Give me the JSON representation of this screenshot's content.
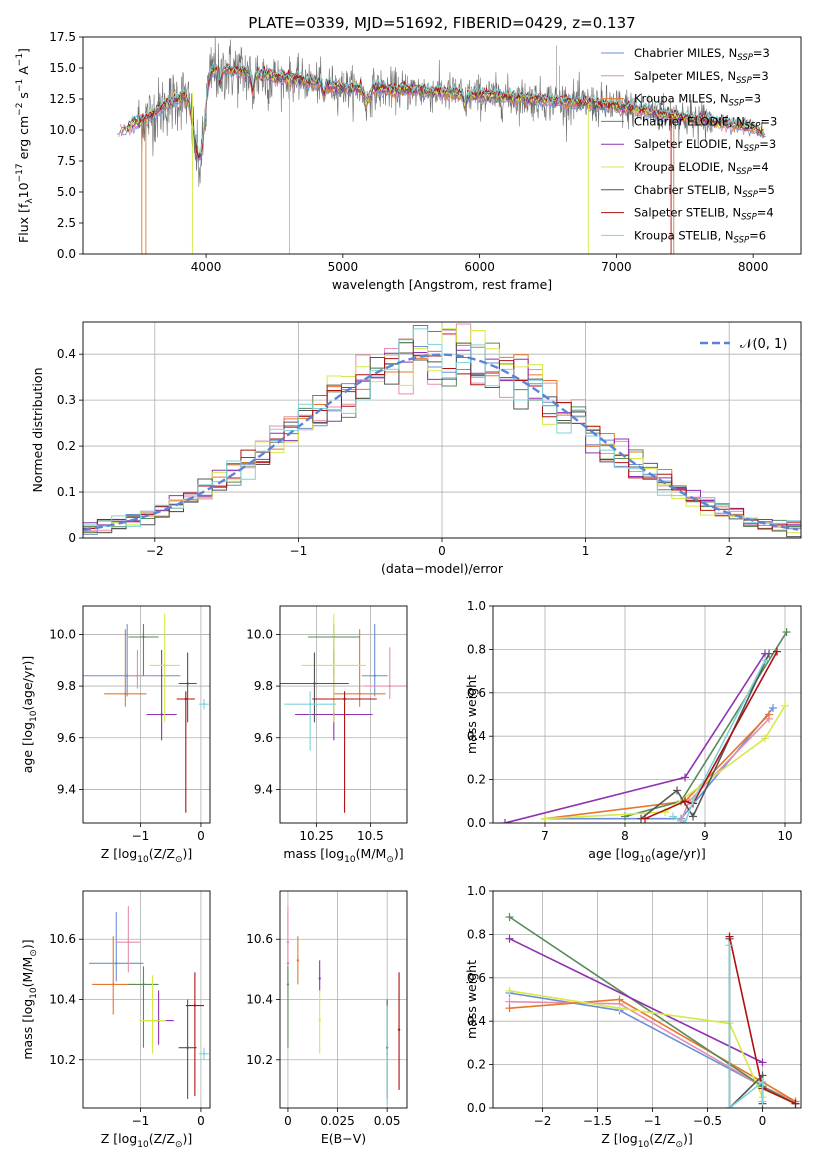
{
  "colors": {
    "chabrier_miles": "#6b8fd6",
    "salpeter_miles": "#e58fb0",
    "kroupa_miles": "#e8772e",
    "chabrier_elodie": "#5a8a5a",
    "salpeter_elodie": "#9030b0",
    "kroupa_elodie": "#d5ea4a",
    "chabrier_stelib": "#555555",
    "salpeter_stelib": "#b01010",
    "kroupa_stelib": "#7fd3d8",
    "gauss": "#5b84d8",
    "grid": "#b0b0b0"
  },
  "chart_data": [
    {
      "id": "spectrum",
      "type": "line",
      "title": "PLATE=0339, MJD=51692, FIBERID=0429, z=0.137",
      "xlabel": "wavelength [Angstrom, rest frame]",
      "ylabel": "Flux [f$_\\lambda$10$^{-17}$ erg cm$^{-2}$ s$^{-1}$ A$^{-1}$]",
      "xlim": [
        3100,
        8350
      ],
      "ylim": [
        0,
        17.5
      ],
      "xticks": [
        4000,
        5000,
        6000,
        7000,
        8000
      ],
      "yticks": [
        0.0,
        2.5,
        5.0,
        7.5,
        10.0,
        12.5,
        15.0,
        17.5
      ],
      "grid": false,
      "legend_position": "top-right",
      "legend": [
        {
          "label": "Chabrier MILES, N",
          "sub": "SSP",
          "n": "=3",
          "color_key": "chabrier_miles"
        },
        {
          "label": "Salpeter MILES, N",
          "sub": "SSP",
          "n": "=3",
          "color_key": "salpeter_miles"
        },
        {
          "label": "Kroupa MILES, N",
          "sub": "SSP",
          "n": "=3",
          "color_key": "kroupa_miles"
        },
        {
          "label": "Chabrier ELODIE, N",
          "sub": "SSP",
          "n": "=3",
          "color_key": "chabrier_elodie"
        },
        {
          "label": "Salpeter ELODIE, N",
          "sub": "SSP",
          "n": "=3",
          "color_key": "salpeter_elodie"
        },
        {
          "label": "Kroupa ELODIE, N",
          "sub": "SSP",
          "n": "=4",
          "color_key": "kroupa_elodie"
        },
        {
          "label": "Chabrier STELIB, N",
          "sub": "SSP",
          "n": "=5",
          "color_key": "chabrier_stelib"
        },
        {
          "label": "Salpeter STELIB, N",
          "sub": "SSP",
          "n": "=4",
          "color_key": "salpeter_stelib"
        },
        {
          "label": "Kroupa STELIB, N",
          "sub": "SSP",
          "n": "=6",
          "color_key": "kroupa_stelib"
        }
      ],
      "continuum": {
        "x": [
          3350,
          3500,
          3600,
          3700,
          3800,
          3900,
          3950,
          4000,
          4100,
          4300,
          4500,
          4700,
          5000,
          5500,
          6000,
          6500,
          7000,
          7500,
          8000,
          8100
        ],
        "y": [
          10.0,
          10.6,
          11.2,
          12.0,
          12.6,
          13.0,
          14.0,
          14.8,
          15.0,
          14.6,
          14.3,
          14.0,
          13.4,
          13.2,
          12.8,
          12.4,
          11.9,
          11.0,
          10.2,
          9.7
        ]
      },
      "model_x_range": [
        3350,
        8100
      ],
      "data_x_range": [
        3500,
        7700
      ]
    },
    {
      "id": "residuals",
      "type": "line",
      "xlabel": "(data-model)/error",
      "ylabel": "Normed distribution",
      "xlim": [
        -2.5,
        2.5
      ],
      "ylim": [
        0,
        0.47
      ],
      "xticks": [
        -2,
        -1,
        0,
        1,
        2
      ],
      "yticks": [
        0.0,
        0.1,
        0.2,
        0.3,
        0.4
      ],
      "grid": true,
      "legend_position": "top-right",
      "legend": [
        {
          "label": "𝒩(0, 1)",
          "color_key": "gauss"
        }
      ],
      "bin_width": 0.1
    },
    {
      "id": "age_vs_z",
      "type": "scatter",
      "xlabel": "Z [log$_{10}$(Z/Z$_\\odot$)]",
      "ylabel": "age  [log$_{10}$(age/yr)]",
      "xlim": [
        -1.95,
        0.15
      ],
      "ylim": [
        9.27,
        10.11
      ],
      "xticks": [
        -1,
        0
      ],
      "yticks": [
        9.4,
        9.6,
        9.8,
        10.0
      ],
      "grid": true,
      "points": [
        {
          "color_key": "chabrier_miles",
          "x": -1.22,
          "xerr": 0.88,
          "y": 9.84,
          "yerr": [
            0.08,
            0.2
          ]
        },
        {
          "color_key": "salpeter_miles",
          "x": -1.05,
          "xerr": 0.15,
          "y": 9.84,
          "yerr": [
            0.05,
            0.1
          ]
        },
        {
          "color_key": "kroupa_miles",
          "x": -1.25,
          "xerr": 0.35,
          "y": 9.77,
          "yerr": [
            0.05,
            0.25
          ]
        },
        {
          "color_key": "chabrier_elodie",
          "x": -0.95,
          "xerr": 0.25,
          "y": 9.99,
          "yerr": [
            0.15,
            0.05
          ]
        },
        {
          "color_key": "salpeter_elodie",
          "x": -0.65,
          "xerr": 0.25,
          "y": 9.69,
          "yerr": [
            0.1,
            0.25
          ]
        },
        {
          "color_key": "kroupa_elodie",
          "x": -0.6,
          "xerr": 0.25,
          "y": 9.88,
          "yerr": [
            0.22,
            0.2
          ]
        },
        {
          "color_key": "chabrier_stelib",
          "x": -0.22,
          "xerr": 0.15,
          "y": 9.81,
          "yerr": [
            0.15,
            0.12
          ]
        },
        {
          "color_key": "salpeter_stelib",
          "x": -0.25,
          "xerr": 0.15,
          "y": 9.75,
          "yerr": [
            0.44,
            0.03
          ]
        },
        {
          "color_key": "kroupa_stelib",
          "x": 0.05,
          "xerr": 0.08,
          "y": 9.73,
          "yerr": [
            0.02,
            0.02
          ]
        }
      ]
    },
    {
      "id": "age_vs_mass",
      "type": "scatter",
      "xlabel": "mass [log$_{10}$(M/M$_\\odot$)]",
      "ylabel": "",
      "xlim": [
        10.08,
        10.67
      ],
      "ylim": [
        9.27,
        10.11
      ],
      "xticks": [
        10.25,
        10.5
      ],
      "yticks": [
        9.4,
        9.6,
        9.8,
        10.0
      ],
      "grid": true,
      "points": [
        {
          "color_key": "chabrier_miles",
          "x": 10.52,
          "xerr": 0.06,
          "y": 9.84,
          "yerr": [
            0.08,
            0.2
          ]
        },
        {
          "color_key": "salpeter_miles",
          "x": 10.59,
          "xerr": 0.12,
          "y": 9.8,
          "yerr": [
            0.05,
            0.15
          ]
        },
        {
          "color_key": "kroupa_miles",
          "x": 10.45,
          "xerr": 0.12,
          "y": 9.77,
          "yerr": [
            0.05,
            0.25
          ]
        },
        {
          "color_key": "chabrier_elodie",
          "x": 10.33,
          "xerr": 0.12,
          "y": 9.99,
          "yerr": [
            0.15,
            0.05
          ]
        },
        {
          "color_key": "salpeter_elodie",
          "x": 10.33,
          "xerr": 0.18,
          "y": 9.69,
          "yerr": [
            0.1,
            0.25
          ]
        },
        {
          "color_key": "kroupa_elodie",
          "x": 10.33,
          "xerr": 0.15,
          "y": 9.88,
          "yerr": [
            0.22,
            0.2
          ]
        },
        {
          "color_key": "chabrier_stelib",
          "x": 10.24,
          "xerr": 0.16,
          "y": 9.81,
          "yerr": [
            0.15,
            0.12
          ]
        },
        {
          "color_key": "salpeter_stelib",
          "x": 10.38,
          "xerr": 0.15,
          "y": 9.75,
          "yerr": [
            0.44,
            0.03
          ]
        },
        {
          "color_key": "kroupa_stelib",
          "x": 10.22,
          "xerr": 0.12,
          "y": 9.73,
          "yerr": [
            0.18,
            0.05
          ]
        }
      ]
    },
    {
      "id": "mass_weight_vs_age",
      "type": "line",
      "xlabel": "age  [log$_{10}$(age/yr)]",
      "ylabel": "mass weight",
      "xlim": [
        6.35,
        10.2
      ],
      "ylim": [
        0,
        1.0
      ],
      "xticks": [
        7,
        8,
        9,
        10
      ],
      "yticks": [
        0.0,
        0.2,
        0.4,
        0.6,
        0.8,
        1.0
      ],
      "grid": true,
      "series": [
        {
          "color_key": "chabrier_miles",
          "x": [
            7.0,
            8.7,
            9.85
          ],
          "y": [
            0.02,
            0.02,
            0.53
          ]
        },
        {
          "color_key": "salpeter_miles",
          "x": [
            8.7,
            8.8,
            9.8
          ],
          "y": [
            0.01,
            0.1,
            0.48
          ]
        },
        {
          "color_key": "kroupa_miles",
          "x": [
            7.0,
            8.75,
            9.8
          ],
          "y": [
            0.02,
            0.1,
            0.5
          ]
        },
        {
          "color_key": "chabrier_elodie",
          "x": [
            8.0,
            8.7,
            10.02
          ],
          "y": [
            0.03,
            0.1,
            0.88
          ]
        },
        {
          "color_key": "salpeter_elodie",
          "x": [
            6.5,
            8.75,
            9.75
          ],
          "y": [
            0.0,
            0.21,
            0.78
          ]
        },
        {
          "color_key": "kroupa_elodie",
          "x": [
            7.0,
            8.5,
            9.75,
            10.0
          ],
          "y": [
            0.02,
            0.05,
            0.39,
            0.54
          ]
        },
        {
          "color_key": "chabrier_stelib",
          "x": [
            8.2,
            8.65,
            8.85,
            9.8
          ],
          "y": [
            0.02,
            0.15,
            0.03,
            0.78
          ]
        },
        {
          "color_key": "salpeter_stelib",
          "x": [
            8.25,
            8.75,
            8.85,
            9.9
          ],
          "y": [
            0.02,
            0.1,
            0.09,
            0.79
          ]
        },
        {
          "color_key": "kroupa_stelib",
          "x": [
            8.6,
            8.75,
            8.85,
            9.75
          ],
          "y": [
            0.03,
            0.0,
            0.1,
            0.75
          ]
        }
      ]
    },
    {
      "id": "mass_vs_z",
      "type": "scatter",
      "xlabel": "Z [log$_{10}$(Z/Z$_\\odot$)]",
      "ylabel": "mass [log$_{10}$(M/M$_\\odot$)]",
      "xlim": [
        -1.95,
        0.15
      ],
      "ylim": [
        10.04,
        10.76
      ],
      "xticks": [
        -1,
        0
      ],
      "yticks": [
        10.2,
        10.4,
        10.6
      ],
      "grid": true,
      "points": [
        {
          "color_key": "chabrier_miles",
          "x": -1.4,
          "xerr": 0.45,
          "y": 10.52,
          "yerr": [
            0.06,
            0.17
          ]
        },
        {
          "color_key": "salpeter_miles",
          "x": -1.2,
          "xerr": 0.2,
          "y": 10.59,
          "yerr": [
            0.1,
            0.12
          ]
        },
        {
          "color_key": "kroupa_miles",
          "x": -1.45,
          "xerr": 0.35,
          "y": 10.45,
          "yerr": [
            0.1,
            0.16
          ]
        },
        {
          "color_key": "chabrier_elodie",
          "x": -0.95,
          "xerr": 0.25,
          "y": 10.45,
          "yerr": [
            0.21,
            0.06
          ]
        },
        {
          "color_key": "salpeter_elodie",
          "x": -0.7,
          "xerr": 0.25,
          "y": 10.33,
          "yerr": [
            0.08,
            0.1
          ]
        },
        {
          "color_key": "kroupa_elodie",
          "x": -0.8,
          "xerr": 0.22,
          "y": 10.33,
          "yerr": [
            0.11,
            0.15
          ]
        },
        {
          "color_key": "chabrier_stelib",
          "x": -0.22,
          "xerr": 0.15,
          "y": 10.24,
          "yerr": [
            0.17,
            0.16
          ]
        },
        {
          "color_key": "salpeter_stelib",
          "x": -0.1,
          "xerr": 0.15,
          "y": 10.38,
          "yerr": [
            0.3,
            0.11
          ]
        },
        {
          "color_key": "kroupa_stelib",
          "x": 0.05,
          "xerr": 0.08,
          "y": 10.22,
          "yerr": [
            0.02,
            0.02
          ]
        }
      ]
    },
    {
      "id": "mass_vs_ebv",
      "type": "scatter",
      "xlabel": "E(B-V)",
      "ylabel": "",
      "xlim": [
        -0.004,
        0.06
      ],
      "ylim": [
        10.04,
        10.76
      ],
      "xticks": [
        0.0,
        0.025,
        0.05
      ],
      "yticks": [
        10.2,
        10.4,
        10.6
      ],
      "grid": true,
      "points": [
        {
          "color_key": "chabrier_miles",
          "x": 0.0,
          "y": 10.52,
          "yerr": [
            0.06,
            0.17
          ]
        },
        {
          "color_key": "salpeter_miles",
          "x": 0.0,
          "y": 10.59,
          "yerr": [
            0.1,
            0.12
          ]
        },
        {
          "color_key": "kroupa_miles",
          "x": 0.005,
          "y": 10.53,
          "yerr": [
            0.08,
            0.08
          ]
        },
        {
          "color_key": "chabrier_elodie",
          "x": 0.0,
          "y": 10.45,
          "yerr": [
            0.21,
            0.06
          ]
        },
        {
          "color_key": "salpeter_elodie",
          "x": 0.016,
          "y": 10.47,
          "yerr": [
            0.04,
            0.06
          ]
        },
        {
          "color_key": "kroupa_elodie",
          "x": 0.016,
          "y": 10.33,
          "yerr": [
            0.11,
            0.1
          ]
        },
        {
          "color_key": "chabrier_stelib",
          "x": 0.05,
          "y": 10.24,
          "yerr": [
            0.17,
            0.16
          ]
        },
        {
          "color_key": "salpeter_stelib",
          "x": 0.056,
          "y": 10.3,
          "yerr": [
            0.2,
            0.19
          ]
        },
        {
          "color_key": "kroupa_stelib",
          "x": 0.05,
          "y": 10.22,
          "yerr": [
            0.17,
            0.16
          ]
        }
      ]
    },
    {
      "id": "mass_weight_vs_z",
      "type": "line",
      "xlabel": "Z [log$_{10}$(Z/Z$_\\odot$)]",
      "ylabel": "mass weight",
      "xlim": [
        -2.45,
        0.35
      ],
      "ylim": [
        0,
        1.0
      ],
      "xticks": [
        -2.0,
        -1.5,
        -1.0,
        -0.5,
        0.0
      ],
      "yticks": [
        0.0,
        0.2,
        0.4,
        0.6,
        0.8,
        1.0
      ],
      "grid": true,
      "series": [
        {
          "color_key": "chabrier_miles",
          "x": [
            -2.3,
            -1.3,
            0.0,
            0.3
          ],
          "y": [
            0.53,
            0.45,
            0.1,
            0.02
          ]
        },
        {
          "color_key": "salpeter_miles",
          "x": [
            -2.3,
            -1.3,
            0.0,
            0.3
          ],
          "y": [
            0.49,
            0.48,
            0.1,
            0.03
          ]
        },
        {
          "color_key": "kroupa_miles",
          "x": [
            -2.3,
            -1.3,
            0.0,
            0.3
          ],
          "y": [
            0.46,
            0.5,
            0.12,
            0.03
          ]
        },
        {
          "color_key": "chabrier_elodie",
          "x": [
            -2.3,
            0.0,
            0.3
          ],
          "y": [
            0.88,
            0.1,
            0.02
          ]
        },
        {
          "color_key": "salpeter_elodie",
          "x": [
            -2.3,
            0.0
          ],
          "y": [
            0.78,
            0.21
          ]
        },
        {
          "color_key": "kroupa_elodie",
          "x": [
            -2.3,
            -1.3,
            -0.3,
            0.0
          ],
          "y": [
            0.54,
            0.46,
            0.39,
            0.05
          ]
        },
        {
          "color_key": "chabrier_stelib",
          "x": [
            -0.3,
            -0.3,
            0.0,
            0.0
          ],
          "y": [
            0.78,
            0.0,
            0.15,
            0.02
          ]
        },
        {
          "color_key": "salpeter_stelib",
          "x": [
            -0.3,
            0.0,
            0.3
          ],
          "y": [
            0.79,
            0.09,
            0.02
          ]
        },
        {
          "color_key": "kroupa_stelib",
          "x": [
            -0.3,
            -0.3,
            0.0,
            0.0
          ],
          "y": [
            0.75,
            0.0,
            0.12,
            0.03
          ]
        }
      ]
    }
  ]
}
